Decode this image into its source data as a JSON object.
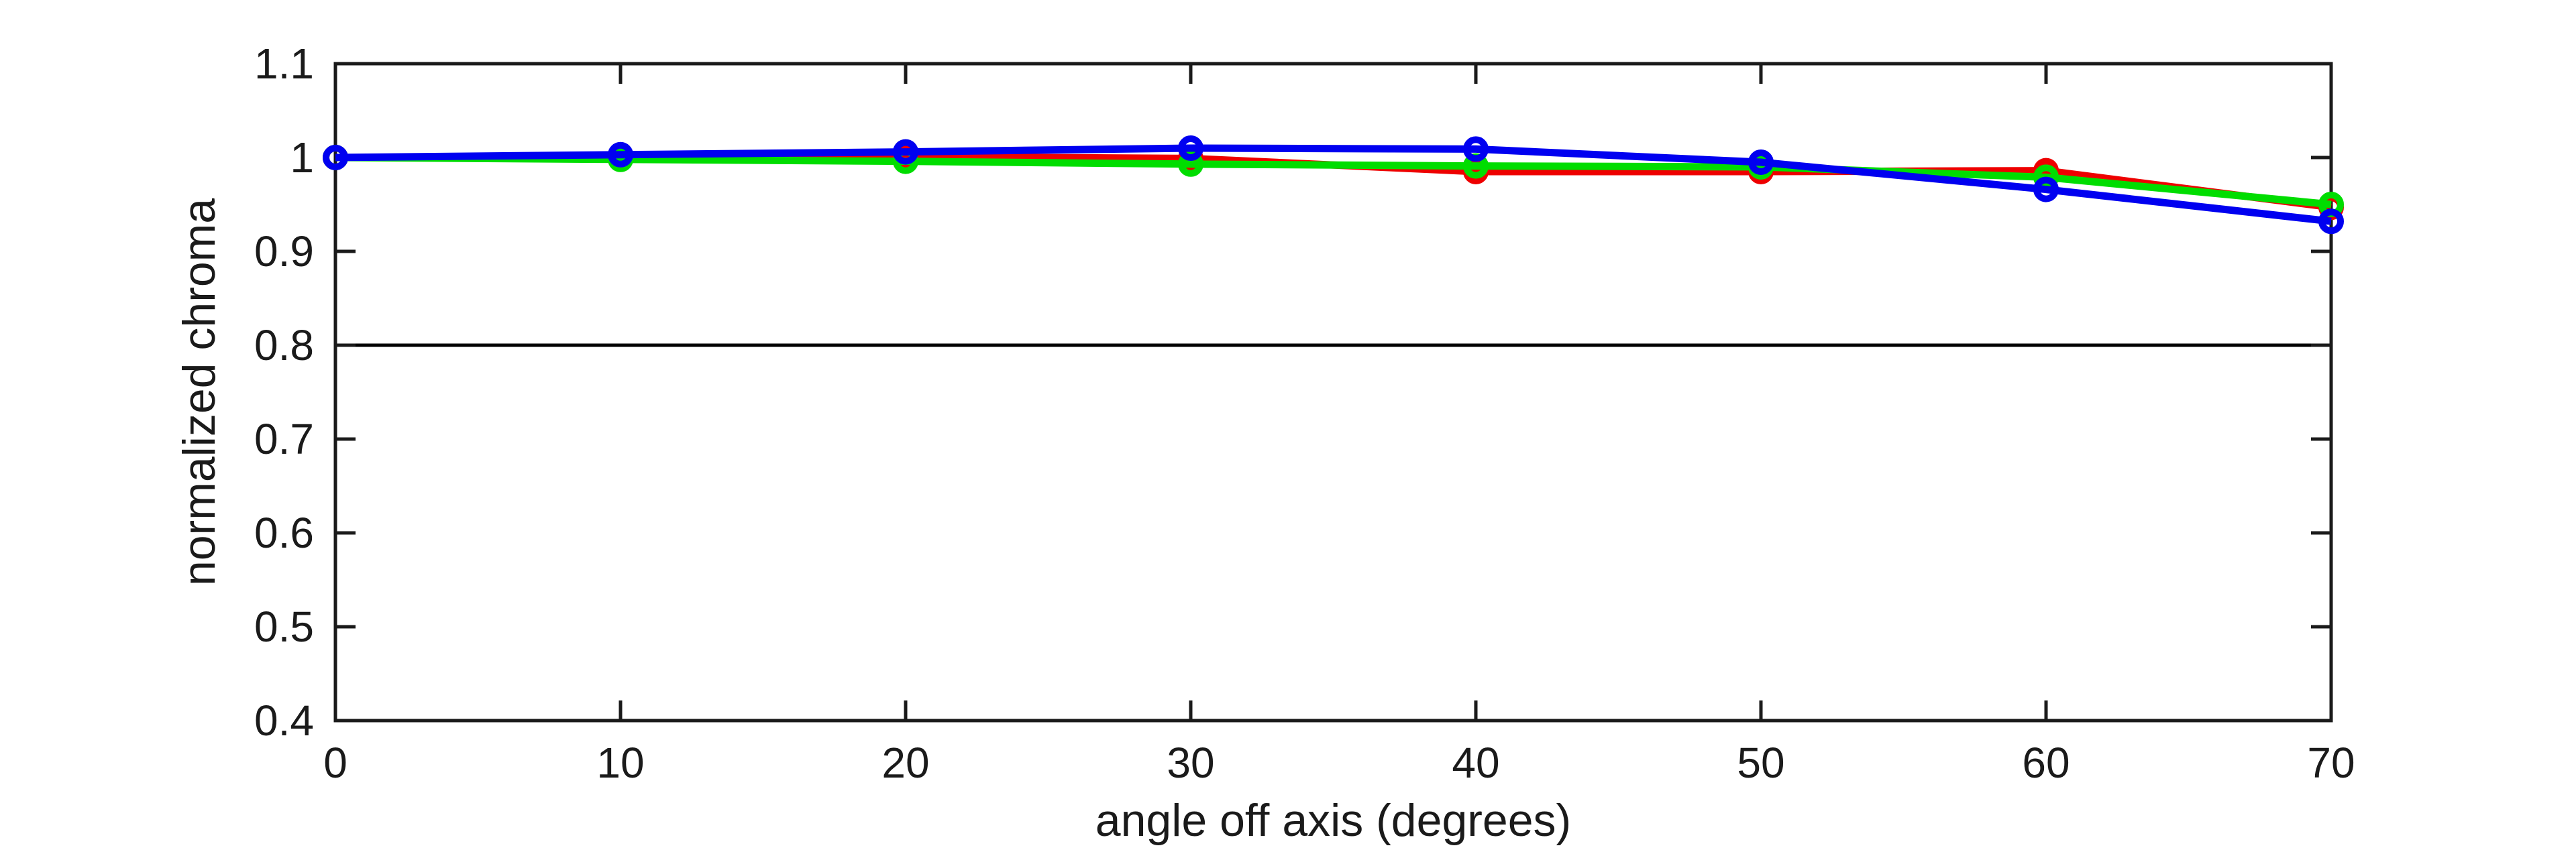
{
  "figure": {
    "background": "#ffffff",
    "axis_color": "#1a1a1a",
    "text_color": "#1a1a1a"
  },
  "chart_data": {
    "type": "line",
    "title": "",
    "xlabel": "angle off axis (degrees)",
    "ylabel": "normalized chroma",
    "xlim": [
      0,
      70
    ],
    "ylim": [
      0.4,
      1.1
    ],
    "xticks": [
      0,
      10,
      20,
      30,
      40,
      50,
      60,
      70
    ],
    "xtick_labels": [
      "0",
      "10",
      "20",
      "30",
      "40",
      "50",
      "60",
      "70"
    ],
    "yticks": [
      0.4,
      0.5,
      0.6,
      0.7,
      0.8,
      0.9,
      1.0,
      1.1
    ],
    "ytick_labels": [
      "0.4",
      "0.5",
      "0.6",
      "0.7",
      "0.8",
      "0.9",
      "1",
      "1.1"
    ],
    "grid": false,
    "box": true,
    "legend": null,
    "x": [
      0,
      10,
      20,
      30,
      40,
      50,
      60,
      70
    ],
    "series": [
      {
        "name": "red",
        "color": "#ee0000",
        "marker": "circle",
        "values": [
          1.0,
          1.0,
          1.001,
          0.999,
          0.985,
          0.985,
          0.986,
          0.947
        ]
      },
      {
        "name": "green",
        "color": "#00dd00",
        "marker": "circle",
        "values": [
          1.0,
          0.998,
          0.996,
          0.993,
          0.991,
          0.99,
          0.979,
          0.95
        ]
      },
      {
        "name": "blue",
        "color": "#0000f0",
        "marker": "circle",
        "values": [
          1.0,
          1.003,
          1.006,
          1.01,
          1.009,
          0.995,
          0.966,
          0.932
        ]
      }
    ],
    "reference_line": {
      "y": 0.8,
      "color": "#000000"
    }
  }
}
